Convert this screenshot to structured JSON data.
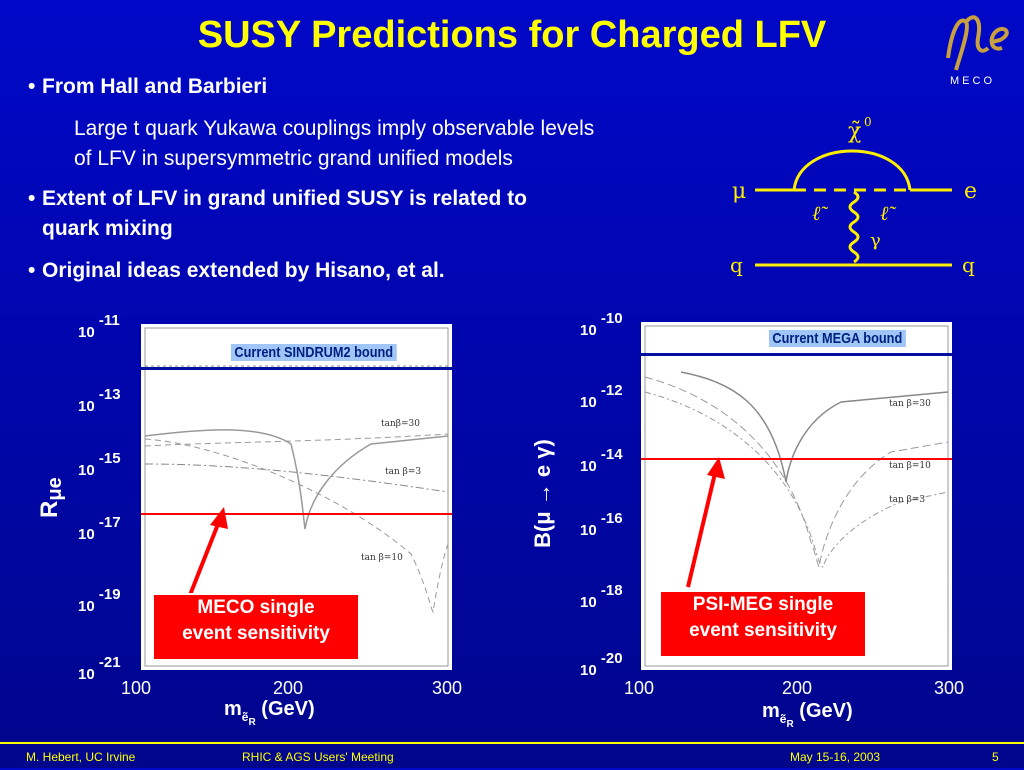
{
  "slide": {
    "title": "SUSY Predictions for Charged LFV",
    "logo_text": "MECO",
    "bullets": [
      {
        "text": "From Hall and Barbieri"
      },
      {
        "text": "Extent of LFV in grand unified SUSY is related to"
      },
      {
        "text": "quark mixing"
      },
      {
        "text": "Original ideas extended by Hisano, et al."
      }
    ],
    "sub_lines": [
      "Large t quark Yukawa couplings imply observable levels",
      "of LFV in supersymmetric grand unified models"
    ]
  },
  "diagram": {
    "chi": "χ̃",
    "chi_sup": "0",
    "mu": "μ",
    "e": "e",
    "l1": "ℓ̃",
    "l2": "ℓ̃",
    "gamma": "γ",
    "q_left": "q",
    "q_right": "q"
  },
  "left_plot": {
    "ylabel": "R",
    "ylabel_sub": "μe",
    "xlabel": "m",
    "xlabel_sub": "ẽ",
    "xlabel_subsub": "R",
    "xlabel_unit": "(GeV)",
    "bound_label": "Current SINDRUM2 bound",
    "callout_line1": "MECO single",
    "callout_line2": "event sensitivity",
    "curve_labels": [
      "tanβ=30",
      "tan β=3",
      "tan β=10"
    ],
    "yticks": [
      {
        "base": "10",
        "exp": "-11"
      },
      {
        "base": "10",
        "exp": "-13"
      },
      {
        "base": "10",
        "exp": "-15"
      },
      {
        "base": "10",
        "exp": "-17"
      },
      {
        "base": "10",
        "exp": "-19"
      },
      {
        "base": "10",
        "exp": "-21"
      }
    ],
    "xticks": [
      "100",
      "200",
      "300"
    ]
  },
  "right_plot": {
    "ylabel": "B(μ → e γ)",
    "xlabel": "m",
    "xlabel_sub": "ẽ",
    "xlabel_subsub": "R",
    "xlabel_unit": "(GeV)",
    "bound_label": "Current MEGA bound",
    "callout_line1": "PSI-MEG single",
    "callout_line2": "event sensitivity",
    "curve_labels": [
      "tan β=30",
      "tan β=10",
      "tan β=3"
    ],
    "yticks": [
      {
        "base": "10",
        "exp": "-10"
      },
      {
        "base": "10",
        "exp": "-12"
      },
      {
        "base": "10",
        "exp": "-14"
      },
      {
        "base": "10",
        "exp": "-16"
      },
      {
        "base": "10",
        "exp": "-18"
      },
      {
        "base": "10",
        "exp": "-20"
      }
    ],
    "xticks": [
      "100",
      "200",
      "300"
    ]
  },
  "footer": {
    "author": "M. Hebert, UC Irvine",
    "meeting": "RHIC & AGS Users' Meeting",
    "date": "May 15-16, 2003",
    "page": "5"
  },
  "colors": {
    "background": "#0006b0",
    "title": "#ffff00",
    "bound_line": "#0010a0",
    "sensitivity_line": "#ff0000",
    "callout": "#ff0000"
  }
}
